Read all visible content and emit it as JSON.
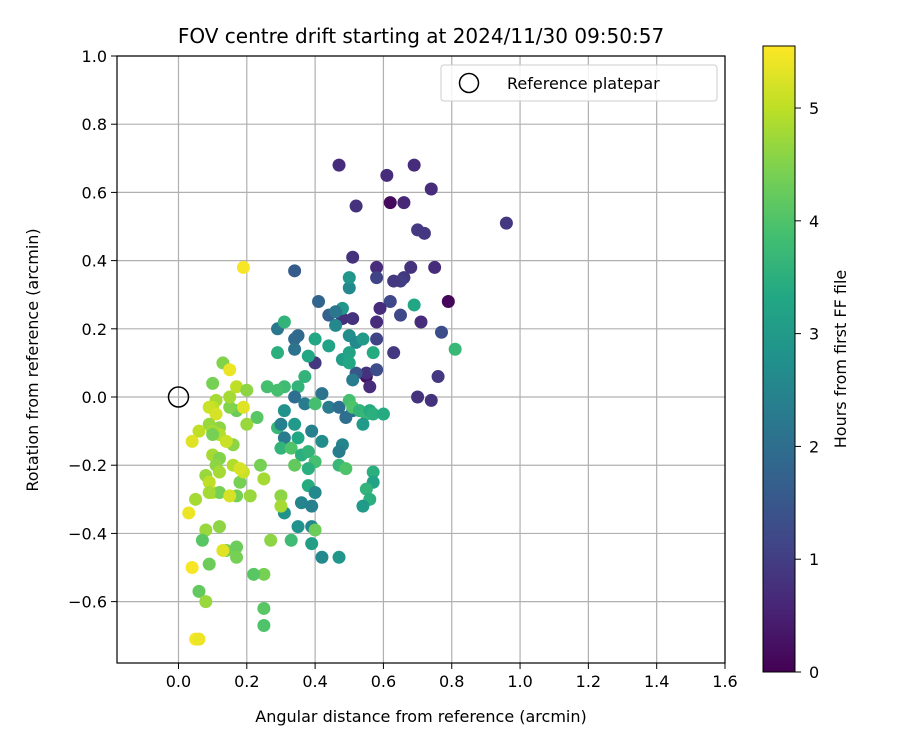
{
  "chart_data": {
    "type": "scatter",
    "title": "FOV centre drift starting at 2024/11/30 09:50:57",
    "xlabel": "Angular distance from reference (arcmin)",
    "ylabel": "Rotation from reference (arcmin)",
    "xlim": [
      -0.18,
      1.6
    ],
    "ylim": [
      -0.78,
      1.0
    ],
    "xticks": [
      "0.0",
      "0.2",
      "0.4",
      "0.6",
      "0.8",
      "1.0",
      "1.2",
      "1.4",
      "1.6"
    ],
    "yticks": [
      "1.0",
      "0.8",
      "0.6",
      "0.4",
      "0.2",
      "0.0",
      "−0.2",
      "−0.4",
      "−0.6"
    ],
    "grid": true,
    "legend": {
      "label": "Reference platepar",
      "placement": "top-right",
      "marker": "open-circle"
    },
    "reference_point": {
      "x": 0.0,
      "y": 0.0
    },
    "colorbar": {
      "label": "Hours from first FF file",
      "range": [
        0,
        5.55
      ],
      "ticks": [
        "0",
        "1",
        "2",
        "3",
        "4",
        "5"
      ],
      "colormap": "viridis"
    },
    "points": [
      {
        "x": 0.79,
        "y": 0.28,
        "h": 0.1
      },
      {
        "x": 0.62,
        "y": 0.57,
        "h": 0.15
      },
      {
        "x": 0.55,
        "y": 0.06,
        "h": 0.2
      },
      {
        "x": 0.47,
        "y": 0.68,
        "h": 0.7
      },
      {
        "x": 0.61,
        "y": 0.65,
        "h": 0.7
      },
      {
        "x": 0.69,
        "y": 0.68,
        "h": 0.7
      },
      {
        "x": 0.74,
        "y": 0.61,
        "h": 0.7
      },
      {
        "x": 0.52,
        "y": 0.56,
        "h": 0.8
      },
      {
        "x": 0.66,
        "y": 0.57,
        "h": 0.6
      },
      {
        "x": 0.96,
        "y": 0.51,
        "h": 0.9
      },
      {
        "x": 0.7,
        "y": 0.49,
        "h": 0.9
      },
      {
        "x": 0.72,
        "y": 0.48,
        "h": 0.9
      },
      {
        "x": 0.51,
        "y": 0.41,
        "h": 0.8
      },
      {
        "x": 0.58,
        "y": 0.38,
        "h": 0.7
      },
      {
        "x": 0.75,
        "y": 0.38,
        "h": 0.7
      },
      {
        "x": 0.68,
        "y": 0.38,
        "h": 0.8
      },
      {
        "x": 0.66,
        "y": 0.35,
        "h": 0.9
      },
      {
        "x": 0.65,
        "y": 0.34,
        "h": 1.0
      },
      {
        "x": 0.63,
        "y": 0.34,
        "h": 0.9
      },
      {
        "x": 0.58,
        "y": 0.35,
        "h": 1.1
      },
      {
        "x": 0.62,
        "y": 0.28,
        "h": 1.2
      },
      {
        "x": 0.59,
        "y": 0.26,
        "h": 0.7
      },
      {
        "x": 0.65,
        "y": 0.24,
        "h": 1.2
      },
      {
        "x": 0.48,
        "y": 0.23,
        "h": 0.8
      },
      {
        "x": 0.51,
        "y": 0.23,
        "h": 0.8
      },
      {
        "x": 0.58,
        "y": 0.22,
        "h": 0.7
      },
      {
        "x": 0.71,
        "y": 0.22,
        "h": 0.7
      },
      {
        "x": 0.77,
        "y": 0.19,
        "h": 1.3
      },
      {
        "x": 0.58,
        "y": 0.17,
        "h": 1.1
      },
      {
        "x": 0.63,
        "y": 0.13,
        "h": 0.9
      },
      {
        "x": 0.55,
        "y": 0.07,
        "h": 0.8
      },
      {
        "x": 0.56,
        "y": 0.03,
        "h": 0.7
      },
      {
        "x": 0.58,
        "y": 0.08,
        "h": 1.3
      },
      {
        "x": 0.52,
        "y": 0.07,
        "h": 1.5
      },
      {
        "x": 0.7,
        "y": 0.0,
        "h": 0.8
      },
      {
        "x": 0.74,
        "y": -0.01,
        "h": 0.8
      },
      {
        "x": 0.4,
        "y": 0.1,
        "h": 0.9
      },
      {
        "x": 0.34,
        "y": 0.37,
        "h": 1.6
      },
      {
        "x": 0.41,
        "y": 0.28,
        "h": 1.8
      },
      {
        "x": 0.44,
        "y": 0.24,
        "h": 1.7
      },
      {
        "x": 0.5,
        "y": 0.32,
        "h": 2.6
      },
      {
        "x": 0.5,
        "y": 0.35,
        "h": 2.9
      },
      {
        "x": 0.48,
        "y": 0.26,
        "h": 2.9
      },
      {
        "x": 0.46,
        "y": 0.25,
        "h": 2.2
      },
      {
        "x": 0.46,
        "y": 0.21,
        "h": 2.6
      },
      {
        "x": 0.5,
        "y": 0.18,
        "h": 2.7
      },
      {
        "x": 0.52,
        "y": 0.16,
        "h": 2.6
      },
      {
        "x": 0.54,
        "y": 0.17,
        "h": 3.0
      },
      {
        "x": 0.44,
        "y": 0.15,
        "h": 3.2
      },
      {
        "x": 0.4,
        "y": 0.17,
        "h": 3.3
      },
      {
        "x": 0.38,
        "y": 0.12,
        "h": 3.3
      },
      {
        "x": 0.35,
        "y": 0.18,
        "h": 1.9
      },
      {
        "x": 0.34,
        "y": 0.17,
        "h": 1.9
      },
      {
        "x": 0.34,
        "y": 0.14,
        "h": 2.1
      },
      {
        "x": 0.29,
        "y": 0.2,
        "h": 2.2
      },
      {
        "x": 0.31,
        "y": 0.22,
        "h": 3.6
      },
      {
        "x": 0.29,
        "y": 0.13,
        "h": 3.5
      },
      {
        "x": 0.48,
        "y": 0.11,
        "h": 3.1
      },
      {
        "x": 0.5,
        "y": 0.13,
        "h": 3.2
      },
      {
        "x": 0.5,
        "y": 0.1,
        "h": 3.3
      },
      {
        "x": 0.51,
        "y": 0.05,
        "h": 2.3
      },
      {
        "x": 0.57,
        "y": 0.13,
        "h": 3.4
      },
      {
        "x": 0.42,
        "y": 0.01,
        "h": 2.1
      },
      {
        "x": 0.37,
        "y": 0.06,
        "h": 3.6
      },
      {
        "x": 0.35,
        "y": 0.03,
        "h": 3.6
      },
      {
        "x": 0.31,
        "y": 0.03,
        "h": 3.8
      },
      {
        "x": 0.29,
        "y": 0.02,
        "h": 3.9
      },
      {
        "x": 0.26,
        "y": 0.03,
        "h": 3.9
      },
      {
        "x": 0.34,
        "y": 0.0,
        "h": 2.0
      },
      {
        "x": 0.37,
        "y": -0.02,
        "h": 2.3
      },
      {
        "x": 0.4,
        "y": -0.02,
        "h": 3.9
      },
      {
        "x": 0.44,
        "y": -0.03,
        "h": 2.3
      },
      {
        "x": 0.47,
        "y": -0.03,
        "h": 2.0
      },
      {
        "x": 0.49,
        "y": -0.06,
        "h": 2.0
      },
      {
        "x": 0.51,
        "y": -0.04,
        "h": 2.0
      },
      {
        "x": 0.5,
        "y": -0.01,
        "h": 3.9
      },
      {
        "x": 0.51,
        "y": -0.03,
        "h": 4.0
      },
      {
        "x": 0.53,
        "y": -0.04,
        "h": 3.6
      },
      {
        "x": 0.55,
        "y": -0.05,
        "h": 3.7
      },
      {
        "x": 0.54,
        "y": -0.08,
        "h": 3.0
      },
      {
        "x": 0.56,
        "y": -0.04,
        "h": 3.4
      },
      {
        "x": 0.57,
        "y": -0.05,
        "h": 3.5
      },
      {
        "x": 0.6,
        "y": -0.05,
        "h": 3.4
      },
      {
        "x": 0.31,
        "y": -0.04,
        "h": 2.8
      },
      {
        "x": 0.34,
        "y": -0.08,
        "h": 3.0
      },
      {
        "x": 0.29,
        "y": -0.09,
        "h": 3.7
      },
      {
        "x": 0.3,
        "y": -0.08,
        "h": 2.4
      },
      {
        "x": 0.31,
        "y": -0.12,
        "h": 2.3
      },
      {
        "x": 0.35,
        "y": -0.12,
        "h": 3.3
      },
      {
        "x": 0.39,
        "y": -0.1,
        "h": 2.4
      },
      {
        "x": 0.42,
        "y": -0.13,
        "h": 2.7
      },
      {
        "x": 0.48,
        "y": -0.14,
        "h": 2.5
      },
      {
        "x": 0.47,
        "y": -0.16,
        "h": 2.3
      },
      {
        "x": 0.3,
        "y": -0.15,
        "h": 3.6
      },
      {
        "x": 0.33,
        "y": -0.15,
        "h": 4.0
      },
      {
        "x": 0.36,
        "y": -0.17,
        "h": 3.5
      },
      {
        "x": 0.38,
        "y": -0.16,
        "h": 3.6
      },
      {
        "x": 0.4,
        "y": -0.19,
        "h": 3.9
      },
      {
        "x": 0.38,
        "y": -0.21,
        "h": 3.5
      },
      {
        "x": 0.34,
        "y": -0.2,
        "h": 4.2
      },
      {
        "x": 0.38,
        "y": -0.26,
        "h": 3.4
      },
      {
        "x": 0.4,
        "y": -0.28,
        "h": 2.6
      },
      {
        "x": 0.36,
        "y": -0.31,
        "h": 2.5
      },
      {
        "x": 0.39,
        "y": -0.32,
        "h": 2.4
      },
      {
        "x": 0.47,
        "y": -0.2,
        "h": 3.7
      },
      {
        "x": 0.49,
        "y": -0.21,
        "h": 4.0
      },
      {
        "x": 0.57,
        "y": -0.22,
        "h": 3.5
      },
      {
        "x": 0.57,
        "y": -0.25,
        "h": 3.2
      },
      {
        "x": 0.55,
        "y": -0.27,
        "h": 3.6
      },
      {
        "x": 0.56,
        "y": -0.3,
        "h": 3.5
      },
      {
        "x": 0.54,
        "y": -0.32,
        "h": 3.0
      },
      {
        "x": 0.31,
        "y": -0.34,
        "h": 2.8
      },
      {
        "x": 0.35,
        "y": -0.38,
        "h": 2.8
      },
      {
        "x": 0.39,
        "y": -0.38,
        "h": 2.5
      },
      {
        "x": 0.4,
        "y": -0.39,
        "h": 4.3
      },
      {
        "x": 0.33,
        "y": -0.42,
        "h": 3.8
      },
      {
        "x": 0.39,
        "y": -0.43,
        "h": 3.1
      },
      {
        "x": 0.42,
        "y": -0.47,
        "h": 2.6
      },
      {
        "x": 0.47,
        "y": -0.47,
        "h": 2.9
      },
      {
        "x": 0.3,
        "y": -0.29,
        "h": 4.6
      },
      {
        "x": 0.3,
        "y": -0.32,
        "h": 4.8
      },
      {
        "x": 0.27,
        "y": -0.42,
        "h": 4.6
      },
      {
        "x": 0.25,
        "y": -0.52,
        "h": 4.4
      },
      {
        "x": 0.22,
        "y": -0.52,
        "h": 4.1
      },
      {
        "x": 0.25,
        "y": -0.62,
        "h": 4.1
      },
      {
        "x": 0.25,
        "y": -0.67,
        "h": 4.0
      },
      {
        "x": 0.21,
        "y": -0.29,
        "h": 4.7
      },
      {
        "x": 0.18,
        "y": -0.25,
        "h": 4.4
      },
      {
        "x": 0.17,
        "y": -0.29,
        "h": 4.4
      },
      {
        "x": 0.24,
        "y": -0.2,
        "h": 4.4
      },
      {
        "x": 0.25,
        "y": -0.24,
        "h": 4.8
      },
      {
        "x": 0.16,
        "y": -0.2,
        "h": 4.9
      },
      {
        "x": 0.19,
        "y": -0.22,
        "h": 5.1
      },
      {
        "x": 0.18,
        "y": -0.21,
        "h": 5.2
      },
      {
        "x": 0.23,
        "y": -0.06,
        "h": 4.1
      },
      {
        "x": 0.17,
        "y": -0.04,
        "h": 4.3
      },
      {
        "x": 0.15,
        "y": -0.03,
        "h": 4.5
      },
      {
        "x": 0.15,
        "y": 0.0,
        "h": 4.8
      },
      {
        "x": 0.17,
        "y": 0.03,
        "h": 5.0
      },
      {
        "x": 0.19,
        "y": -0.03,
        "h": 5.3
      },
      {
        "x": 0.2,
        "y": 0.02,
        "h": 4.6
      },
      {
        "x": 0.2,
        "y": -0.08,
        "h": 4.7
      },
      {
        "x": 0.16,
        "y": -0.14,
        "h": 4.6
      },
      {
        "x": 0.13,
        "y": 0.1,
        "h": 4.5
      },
      {
        "x": 0.15,
        "y": 0.08,
        "h": 5.4
      },
      {
        "x": 0.1,
        "y": 0.04,
        "h": 4.4
      },
      {
        "x": 0.11,
        "y": -0.01,
        "h": 4.8
      },
      {
        "x": 0.1,
        "y": -0.03,
        "h": 5.0
      },
      {
        "x": 0.09,
        "y": -0.03,
        "h": 5.1
      },
      {
        "x": 0.11,
        "y": -0.05,
        "h": 5.2
      },
      {
        "x": 0.09,
        "y": -0.08,
        "h": 4.7
      },
      {
        "x": 0.12,
        "y": -0.09,
        "h": 4.6
      },
      {
        "x": 0.1,
        "y": -0.1,
        "h": 4.8
      },
      {
        "x": 0.12,
        "y": -0.11,
        "h": 4.9
      },
      {
        "x": 0.14,
        "y": -0.13,
        "h": 5.1
      },
      {
        "x": 0.1,
        "y": -0.11,
        "h": 4.4
      },
      {
        "x": 0.06,
        "y": -0.1,
        "h": 5.0
      },
      {
        "x": 0.04,
        "y": -0.13,
        "h": 5.3
      },
      {
        "x": 0.1,
        "y": -0.17,
        "h": 4.8
      },
      {
        "x": 0.12,
        "y": -0.18,
        "h": 4.5
      },
      {
        "x": 0.11,
        "y": -0.2,
        "h": 4.6
      },
      {
        "x": 0.12,
        "y": -0.22,
        "h": 4.8
      },
      {
        "x": 0.08,
        "y": -0.23,
        "h": 4.7
      },
      {
        "x": 0.09,
        "y": -0.25,
        "h": 5.0
      },
      {
        "x": 0.1,
        "y": -0.28,
        "h": 5.1
      },
      {
        "x": 0.12,
        "y": -0.28,
        "h": 4.4
      },
      {
        "x": 0.09,
        "y": -0.28,
        "h": 4.8
      },
      {
        "x": 0.15,
        "y": -0.29,
        "h": 5.2
      },
      {
        "x": 0.05,
        "y": -0.3,
        "h": 4.8
      },
      {
        "x": 0.03,
        "y": -0.34,
        "h": 5.4
      },
      {
        "x": 0.12,
        "y": -0.38,
        "h": 4.6
      },
      {
        "x": 0.08,
        "y": -0.39,
        "h": 4.7
      },
      {
        "x": 0.14,
        "y": -0.45,
        "h": 4.4
      },
      {
        "x": 0.13,
        "y": -0.45,
        "h": 5.3
      },
      {
        "x": 0.17,
        "y": -0.44,
        "h": 4.3
      },
      {
        "x": 0.17,
        "y": -0.47,
        "h": 4.4
      },
      {
        "x": 0.07,
        "y": -0.42,
        "h": 4.1
      },
      {
        "x": 0.09,
        "y": -0.49,
        "h": 4.3
      },
      {
        "x": 0.04,
        "y": -0.5,
        "h": 5.5
      },
      {
        "x": 0.06,
        "y": -0.57,
        "h": 4.2
      },
      {
        "x": 0.08,
        "y": -0.6,
        "h": 4.7
      },
      {
        "x": 0.05,
        "y": -0.71,
        "h": 5.5
      },
      {
        "x": 0.06,
        "y": -0.71,
        "h": 5.4
      },
      {
        "x": 0.19,
        "y": 0.38,
        "h": 5.5
      },
      {
        "x": 0.81,
        "y": 0.14,
        "h": 3.7
      },
      {
        "x": 0.69,
        "y": 0.27,
        "h": 3.3
      },
      {
        "x": 0.76,
        "y": 0.06,
        "h": 0.9
      }
    ]
  }
}
